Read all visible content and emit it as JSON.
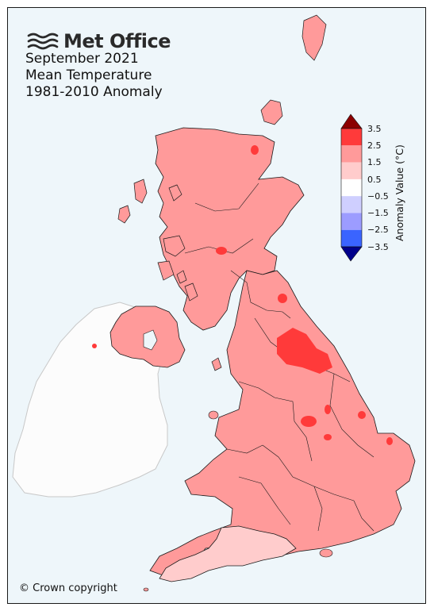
{
  "brand": {
    "name": "Met Office"
  },
  "title": {
    "line1": "September 2021",
    "line2": "Mean Temperature",
    "line3": "1981-2010 Anomaly"
  },
  "legend": {
    "title": "Anomaly Value (°C)",
    "ticks": [
      "3.5",
      "2.5",
      "1.5",
      "0.5",
      "−0.5",
      "−1.5",
      "−2.5",
      "−3.5"
    ],
    "bands": [
      {
        "range": "2.5 to 3.5",
        "color": "#ff3a3a"
      },
      {
        "range": "1.5 to 2.5",
        "color": "#ff9a9a"
      },
      {
        "range": "0.5 to 1.5",
        "color": "#ffcccc"
      },
      {
        "range": "-0.5 to 0.5",
        "color": "#ffffff"
      },
      {
        "range": "-1.5 to -0.5",
        "color": "#cfcfff"
      },
      {
        "range": "-2.5 to -1.5",
        "color": "#9c9cff"
      },
      {
        "range": "-3.5 to -2.5",
        "color": "#3a64ff"
      }
    ],
    "over_color": "#8b0000",
    "under_color": "#00008b"
  },
  "colors": {
    "sea": "#eef6fa",
    "ireland": "#fcfcfc",
    "dominant_anomaly": "#ff9a9a",
    "hot_spots": "#ff3a3a",
    "mild_areas": "#ffcccc"
  },
  "copyright": "© Crown copyright"
}
